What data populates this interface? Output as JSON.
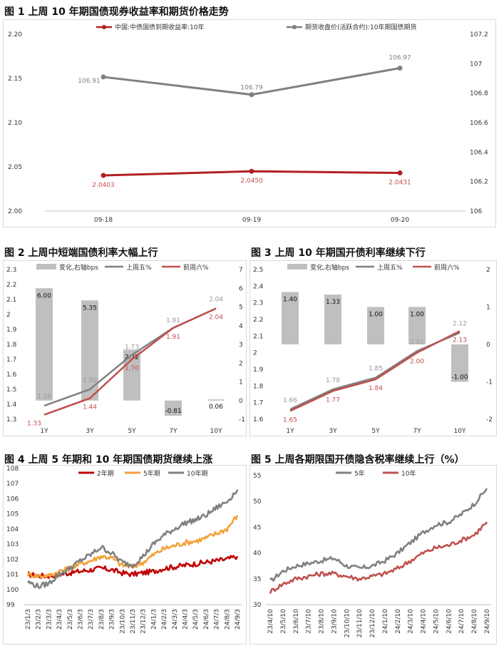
{
  "titles": {
    "fig1": "图 1  上周 10 年期国债现券收益率和期货价格走势",
    "fig2": "图 2  上周中短端国债利率大幅上行",
    "fig3": "图 3  上周 10 年期国开债利率继续下行",
    "fig4": "图 4  上周 5 年期和 10 年期国债期货继续上涨",
    "fig5": "图 5  上周各期限国开债隐含税率继续上行（%）"
  },
  "chart_data": [
    {
      "id": "fig1",
      "type": "line",
      "title": "图 1  上周 10 年期国债现券收益率和期货价格走势",
      "categories": [
        "09-18",
        "09-19",
        "09-20"
      ],
      "series": [
        {
          "name": "中国:中债国债到期收益率:10年",
          "axis": "left",
          "color": "#b11f24",
          "values": [
            2.0403,
            2.045,
            2.0431
          ],
          "labels": [
            "2.0403",
            "2.0450",
            "2.0431"
          ]
        },
        {
          "name": "期货收盘价(活跃合约):10年期国债期货",
          "axis": "right",
          "color": "#808080",
          "values": [
            106.91,
            106.79,
            106.97
          ],
          "labels": [
            "106.91",
            "106.79",
            "106.97"
          ]
        }
      ],
      "yleft": {
        "min": 2.0,
        "max": 2.2,
        "ticks": [
          "2.00",
          "2.05",
          "2.10",
          "2.15",
          "2.20"
        ]
      },
      "yright": {
        "min": 106.0,
        "max": 107.2,
        "ticks": [
          "106",
          "106.2",
          "106.4",
          "106.6",
          "106.8",
          "107",
          "107.2"
        ]
      }
    },
    {
      "id": "fig2",
      "type": "bar",
      "title": "图 2  上周中短端国债利率大幅上行",
      "categories": [
        "1Y",
        "3Y",
        "5Y",
        "7Y",
        "10Y"
      ],
      "bars": {
        "name": "变化,右轴bps",
        "color": "#bfbfbf",
        "values": [
          6.0,
          5.35,
          2.72,
          -0.81,
          0.06
        ],
        "labels": [
          "6.00",
          "5.35",
          "2.72",
          "-0.81",
          "0.06"
        ]
      },
      "series": [
        {
          "name": "上周五%",
          "color": "#808080",
          "values": [
            1.39,
            1.5,
            1.73,
            1.91,
            2.04
          ],
          "labels": [
            "1.39",
            "1.50",
            "1.73",
            "1.91",
            "2.04"
          ]
        },
        {
          "name": "前周六%",
          "color": "#c0504d",
          "values": [
            1.33,
            1.44,
            1.7,
            1.91,
            2.04
          ],
          "labels": [
            "1.33",
            "1.44",
            "1.70",
            "1.91",
            "2.04"
          ]
        }
      ],
      "yleft": {
        "min": 1.3,
        "max": 2.3,
        "ticks": [
          "1.3",
          "1.4",
          "1.5",
          "1.6",
          "1.7",
          "1.8",
          "1.9",
          "2",
          "2.1",
          "2.2",
          "2.3"
        ]
      },
      "yright": {
        "min": -1,
        "max": 7,
        "ticks": [
          "-1",
          "0",
          "1",
          "2",
          "3",
          "4",
          "5",
          "6",
          "7"
        ]
      }
    },
    {
      "id": "fig3",
      "type": "bar",
      "title": "图 3  上周 10 年期国开债利率继续下行",
      "categories": [
        "1Y",
        "3Y",
        "5Y",
        "7Y",
        "10Y"
      ],
      "bars": {
        "name": "变化,右轴bps",
        "color": "#bfbfbf",
        "values": [
          1.4,
          1.33,
          1.0,
          1.0,
          -1.0
        ],
        "labels": [
          "1.40",
          "1.33",
          "1.00",
          "1.00",
          "-1.00"
        ]
      },
      "series": [
        {
          "name": "上周五%",
          "color": "#808080",
          "values": [
            1.66,
            1.78,
            1.85,
            2.01,
            2.12
          ],
          "labels": [
            "1.66",
            "1.78",
            "1.85",
            "2.01",
            "2.12"
          ]
        },
        {
          "name": "前周六%",
          "color": "#c0504d",
          "values": [
            1.65,
            1.77,
            1.84,
            2.0,
            2.13
          ],
          "labels": [
            "1.65",
            "1.77",
            "1.84",
            "2.00",
            "2.13"
          ]
        }
      ],
      "yleft": {
        "min": 1.6,
        "max": 2.5,
        "ticks": [
          "1.6",
          "1.7",
          "1.8",
          "1.9",
          "2",
          "2.1",
          "2.2",
          "2.3",
          "2.4",
          "2.5"
        ]
      },
      "yright": {
        "min": -2,
        "max": 2,
        "ticks": [
          "-2",
          "-1",
          "0",
          "1",
          "2"
        ]
      }
    },
    {
      "id": "fig4",
      "type": "line",
      "title": "图 4  上周 5 年期和 10 年期国债期货继续上涨",
      "categories": [
        "23/1/3",
        "23/2/3",
        "23/3/3",
        "23/4/3",
        "23/5/3",
        "23/6/3",
        "23/7/3",
        "23/8/3",
        "23/9/3",
        "23/10/3",
        "23/11/3",
        "23/12/3",
        "24/1/3",
        "24/2/3",
        "24/3/3",
        "24/4/3",
        "24/5/3",
        "24/6/3",
        "24/7/3",
        "24/8/3",
        "24/9/3"
      ],
      "series": [
        {
          "name": "2年期",
          "color": "#c00000",
          "values": [
            101.0,
            100.9,
            100.9,
            101.0,
            101.1,
            101.2,
            101.3,
            101.4,
            101.3,
            101.1,
            101.0,
            101.1,
            101.2,
            101.4,
            101.5,
            101.6,
            101.7,
            101.8,
            101.9,
            102.0,
            102.2
          ]
        },
        {
          "name": "5年期",
          "color": "#f4a13a",
          "values": [
            101.0,
            100.9,
            100.9,
            101.2,
            101.4,
            101.7,
            101.9,
            102.2,
            102.1,
            101.6,
            101.5,
            101.8,
            102.3,
            102.7,
            102.9,
            103.1,
            103.2,
            103.4,
            103.7,
            104.0,
            104.9
          ]
        },
        {
          "name": "10年期",
          "color": "#808080",
          "values": [
            100.5,
            100.2,
            100.4,
            101.0,
            101.4,
            101.9,
            102.3,
            102.8,
            102.4,
            101.8,
            101.6,
            102.2,
            103.0,
            103.6,
            104.0,
            104.4,
            104.6,
            104.9,
            105.4,
            105.8,
            106.6
          ]
        }
      ],
      "yleft": {
        "min": 99,
        "max": 108,
        "ticks": [
          "99",
          "100",
          "101",
          "102",
          "103",
          "104",
          "105",
          "106",
          "107",
          "108"
        ]
      }
    },
    {
      "id": "fig5",
      "type": "line",
      "title": "图 5  上周各期限国开债隐含税率继续上行（%）",
      "categories": [
        "23/4/10",
        "23/5/10",
        "23/6/10",
        "23/7/10",
        "23/8/10",
        "23/9/10",
        "23/10/10",
        "23/11/10",
        "23/12/10",
        "24/1/10",
        "24/2/10",
        "24/3/10",
        "24/4/10",
        "24/5/10",
        "24/6/10",
        "24/7/10",
        "24/8/10",
        "24/9/10"
      ],
      "series": [
        {
          "name": "5年",
          "color": "#808080",
          "values": [
            34.5,
            36.5,
            37.5,
            38.0,
            38.5,
            39.0,
            37.5,
            37.0,
            37.5,
            38.5,
            40.0,
            42.0,
            44.0,
            45.5,
            46.0,
            47.5,
            49.5,
            52.5
          ]
        },
        {
          "name": "10年",
          "color": "#c0504d",
          "values": [
            32.5,
            34.0,
            35.0,
            35.5,
            36.0,
            36.0,
            35.5,
            35.0,
            35.5,
            36.0,
            37.0,
            38.5,
            40.0,
            41.0,
            41.5,
            42.5,
            43.5,
            46.0
          ]
        }
      ],
      "yleft": {
        "min": 30,
        "max": 55,
        "ticks": [
          "30",
          "35",
          "40",
          "45",
          "50",
          "55"
        ]
      }
    }
  ]
}
